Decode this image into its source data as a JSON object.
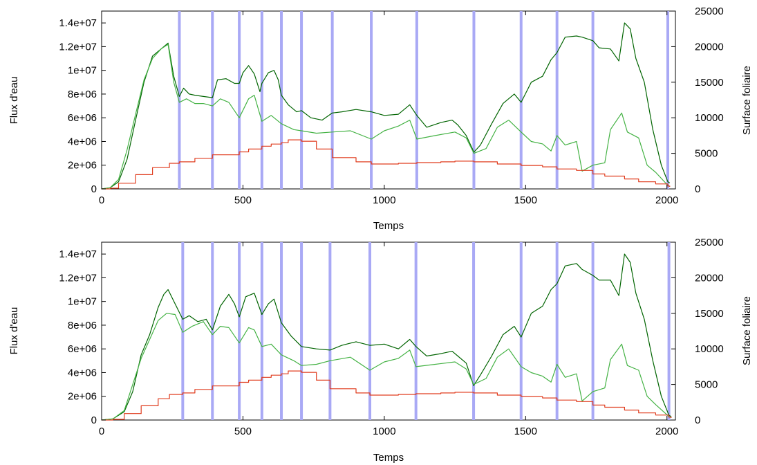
{
  "chart_data": [
    {
      "type": "line",
      "xlabel": "Temps",
      "ylabel_left": "Flux d'eau",
      "ylabel_right": "Surface foliaire",
      "xlim": [
        0,
        2030
      ],
      "ylim_left": [
        0,
        15000000
      ],
      "ylim_right": [
        0,
        25000
      ],
      "x_ticks": [
        0,
        500,
        1000,
        1500,
        2000
      ],
      "y_ticks_left": [
        0,
        2000000,
        4000000,
        6000000,
        8000000,
        10000000,
        12000000,
        14000000
      ],
      "y_tick_labels_left": [
        "0",
        "2e+06",
        "4e+06",
        "6e+06",
        "8e+06",
        "1e+07",
        "1.2e+07",
        "1.4e+07"
      ],
      "y_ticks_right": [
        0,
        5000,
        10000,
        15000,
        20000,
        25000
      ],
      "grid": false,
      "vertical_markers": [
        275,
        392,
        487,
        567,
        636,
        707,
        816,
        954,
        1115,
        1317,
        1484,
        1611,
        1738,
        2003
      ],
      "series": [
        {
          "color": "#006400",
          "axis": "left",
          "x": [
            0,
            30,
            60,
            90,
            120,
            150,
            180,
            210,
            235,
            255,
            275,
            290,
            310,
            330,
            360,
            392,
            410,
            440,
            470,
            487,
            500,
            520,
            540,
            560,
            567,
            590,
            610,
            625,
            636,
            660,
            690,
            707,
            740,
            780,
            816,
            850,
            900,
            954,
            1000,
            1050,
            1090,
            1115,
            1150,
            1200,
            1240,
            1260,
            1290,
            1317,
            1340,
            1380,
            1420,
            1460,
            1484,
            1520,
            1560,
            1590,
            1611,
            1640,
            1680,
            1700,
            1738,
            1760,
            1800,
            1830,
            1850,
            1870,
            1890,
            1920,
            1950,
            1980,
            2003,
            2010
          ],
          "values": [
            0,
            100000,
            600000,
            2500000,
            5800000,
            9000000,
            11200000,
            11800000,
            12300000,
            9500000,
            7800000,
            8500000,
            8000000,
            7900000,
            7800000,
            7700000,
            9200000,
            9300000,
            8900000,
            8900000,
            9800000,
            10400000,
            9700000,
            8200000,
            8900000,
            9800000,
            10000000,
            9200000,
            7900000,
            7100000,
            6500000,
            6600000,
            6000000,
            5800000,
            6400000,
            6500000,
            6700000,
            6500000,
            6200000,
            6300000,
            7100000,
            6200000,
            5200000,
            5600000,
            5800000,
            5400000,
            4500000,
            3100000,
            3700000,
            5500000,
            7200000,
            8000000,
            7300000,
            9000000,
            9500000,
            10900000,
            11500000,
            12800000,
            12900000,
            12800000,
            12500000,
            11900000,
            11800000,
            10800000,
            14000000,
            13500000,
            11000000,
            9000000,
            5000000,
            2000000,
            600000,
            500000
          ]
        },
        {
          "color": "#44b244",
          "axis": "left",
          "x": [
            0,
            30,
            60,
            90,
            120,
            150,
            180,
            210,
            235,
            255,
            275,
            300,
            330,
            360,
            392,
            420,
            450,
            487,
            520,
            540,
            567,
            600,
            636,
            680,
            707,
            760,
            816,
            880,
            954,
            1000,
            1050,
            1090,
            1115,
            1180,
            1250,
            1290,
            1317,
            1360,
            1400,
            1440,
            1484,
            1520,
            1560,
            1590,
            1611,
            1640,
            1680,
            1700,
            1738,
            1780,
            1800,
            1840,
            1860,
            1900,
            1930,
            1960,
            2003,
            2010
          ],
          "values": [
            0,
            100000,
            800000,
            3300000,
            6300000,
            9200000,
            11000000,
            11800000,
            12200000,
            9000000,
            7300000,
            7600000,
            7200000,
            7200000,
            7000000,
            7600000,
            7300000,
            6000000,
            7600000,
            7900000,
            5700000,
            6200000,
            5500000,
            5000000,
            4900000,
            4700000,
            4800000,
            4900000,
            4200000,
            4900000,
            5300000,
            5800000,
            4200000,
            4500000,
            4800000,
            4300000,
            3000000,
            3400000,
            5200000,
            5800000,
            4800000,
            4000000,
            3800000,
            3200000,
            4500000,
            3700000,
            4000000,
            1500000,
            2000000,
            2200000,
            5000000,
            6400000,
            4800000,
            4300000,
            2000000,
            1400000,
            300000,
            200000
          ]
        },
        {
          "color": "#e03c1e",
          "axis": "right",
          "step": true,
          "x": [
            0,
            30,
            60,
            120,
            180,
            240,
            275,
            330,
            392,
            440,
            487,
            520,
            567,
            600,
            636,
            660,
            707,
            760,
            816,
            900,
            954,
            1050,
            1115,
            1200,
            1250,
            1317,
            1400,
            1484,
            1560,
            1611,
            1680,
            1738,
            1780,
            1850,
            1900,
            1960,
            2003,
            2010
          ],
          "values": [
            0,
            100,
            800,
            2000,
            3000,
            3600,
            3800,
            4300,
            4800,
            4800,
            5200,
            5600,
            6000,
            6300,
            6500,
            6900,
            6700,
            5600,
            4400,
            3800,
            3500,
            3600,
            3700,
            3800,
            3900,
            3800,
            3500,
            3300,
            3100,
            2800,
            2600,
            2100,
            1800,
            1400,
            1000,
            700,
            400,
            300
          ]
        }
      ]
    },
    {
      "type": "line",
      "xlabel": "Temps",
      "ylabel_left": "Flux d'eau",
      "ylabel_right": "Surface foliaire",
      "xlim": [
        0,
        2030
      ],
      "ylim_left": [
        0,
        15000000
      ],
      "ylim_right": [
        0,
        25000
      ],
      "x_ticks": [
        0,
        500,
        1000,
        1500,
        2000
      ],
      "y_ticks_left": [
        0,
        2000000,
        4000000,
        6000000,
        8000000,
        10000000,
        12000000,
        14000000
      ],
      "y_tick_labels_left": [
        "0",
        "2e+06",
        "4e+06",
        "6e+06",
        "8e+06",
        "1e+07",
        "1.2e+07",
        "1.4e+07"
      ],
      "y_ticks_right": [
        0,
        5000,
        10000,
        15000,
        20000,
        25000
      ],
      "grid": false,
      "vertical_markers": [
        287,
        392,
        487,
        567,
        636,
        707,
        808,
        949,
        1112,
        1316,
        1484,
        1611,
        1738,
        2007
      ],
      "series": [
        {
          "color": "#006400",
          "axis": "left",
          "x": [
            0,
            40,
            80,
            110,
            140,
            170,
            200,
            220,
            235,
            260,
            287,
            310,
            340,
            370,
            392,
            420,
            450,
            470,
            487,
            510,
            540,
            567,
            590,
            610,
            636,
            670,
            707,
            760,
            808,
            850,
            900,
            949,
            1000,
            1050,
            1090,
            1112,
            1150,
            1200,
            1240,
            1260,
            1290,
            1316,
            1340,
            1380,
            1420,
            1460,
            1484,
            1520,
            1560,
            1590,
            1611,
            1640,
            1680,
            1700,
            1738,
            1760,
            1800,
            1830,
            1850,
            1870,
            1890,
            1920,
            1950,
            1980,
            2007,
            2015
          ],
          "values": [
            0,
            100000,
            700000,
            2400000,
            5500000,
            7200000,
            9500000,
            10600000,
            11000000,
            9800000,
            8500000,
            8800000,
            8300000,
            8500000,
            7600000,
            9600000,
            10600000,
            9800000,
            8700000,
            10400000,
            10700000,
            8900000,
            9800000,
            10200000,
            8200000,
            7100000,
            6200000,
            6000000,
            5900000,
            6300000,
            6600000,
            6300000,
            6400000,
            6000000,
            6800000,
            6200000,
            5400000,
            5600000,
            5800000,
            5400000,
            4800000,
            2900000,
            3800000,
            5400000,
            7200000,
            7900000,
            7000000,
            9000000,
            9600000,
            11000000,
            11500000,
            13000000,
            13200000,
            12700000,
            12200000,
            11800000,
            11800000,
            10500000,
            14000000,
            13300000,
            10700000,
            8500000,
            5000000,
            2000000,
            400000,
            300000
          ]
        },
        {
          "color": "#44b244",
          "axis": "left",
          "x": [
            0,
            40,
            80,
            110,
            140,
            170,
            200,
            230,
            260,
            287,
            320,
            360,
            392,
            420,
            450,
            487,
            520,
            540,
            567,
            600,
            636,
            680,
            707,
            760,
            808,
            880,
            949,
            1000,
            1050,
            1090,
            1112,
            1180,
            1250,
            1290,
            1316,
            1360,
            1400,
            1440,
            1484,
            1520,
            1560,
            1590,
            1611,
            1640,
            1680,
            1700,
            1738,
            1780,
            1800,
            1840,
            1860,
            1900,
            1930,
            1960,
            2007,
            2015
          ],
          "values": [
            0,
            100000,
            800000,
            3000000,
            5200000,
            6800000,
            8400000,
            9000000,
            8900000,
            7400000,
            7900000,
            8300000,
            7200000,
            7900000,
            7800000,
            6500000,
            7800000,
            7600000,
            6200000,
            6400000,
            5500000,
            5000000,
            4600000,
            4700000,
            5000000,
            5300000,
            4200000,
            4900000,
            5200000,
            5900000,
            4500000,
            4700000,
            4900000,
            4300000,
            3000000,
            3500000,
            5300000,
            6000000,
            4500000,
            4000000,
            3700000,
            3200000,
            4700000,
            3600000,
            3900000,
            1600000,
            2400000,
            2700000,
            5100000,
            6400000,
            4600000,
            4200000,
            2000000,
            1300000,
            300000,
            200000
          ]
        },
        {
          "color": "#e03c1e",
          "axis": "right",
          "step": true,
          "x": [
            0,
            40,
            80,
            140,
            200,
            240,
            287,
            330,
            392,
            440,
            487,
            520,
            567,
            600,
            636,
            660,
            707,
            760,
            808,
            900,
            949,
            1050,
            1112,
            1200,
            1250,
            1316,
            1400,
            1484,
            1560,
            1611,
            1680,
            1738,
            1780,
            1850,
            1900,
            1960,
            2007,
            2015
          ],
          "values": [
            0,
            100,
            900,
            2000,
            3000,
            3600,
            3800,
            4300,
            4800,
            4800,
            5300,
            5600,
            6000,
            6300,
            6500,
            6900,
            6700,
            5600,
            4400,
            3800,
            3500,
            3600,
            3700,
            3800,
            3900,
            3800,
            3500,
            3300,
            3100,
            2800,
            2600,
            2100,
            1800,
            1400,
            1000,
            700,
            400,
            300
          ]
        }
      ]
    }
  ]
}
